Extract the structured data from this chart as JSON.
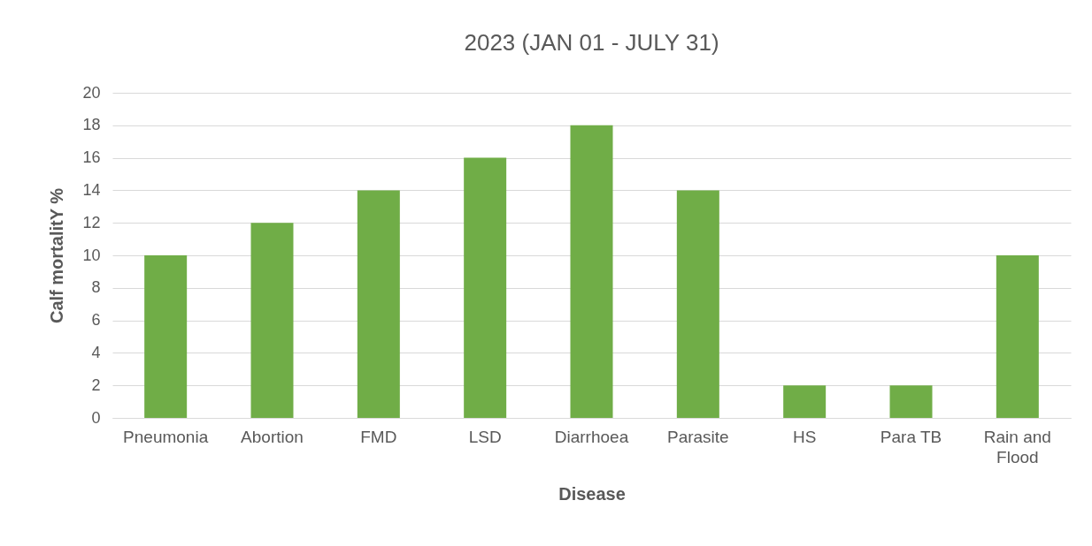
{
  "chart_data": {
    "type": "bar",
    "title": "2023 (JAN 01 - JULY 31)",
    "xlabel": "Disease",
    "ylabel": "Calf mortalitY %",
    "categories": [
      "Pneumonia",
      "Abortion",
      "FMD",
      "LSD",
      "Diarrhoea",
      "Parasite",
      "HS",
      "Para TB",
      "Rain and Flood"
    ],
    "values": [
      10,
      12,
      14,
      16,
      18,
      14,
      2,
      2,
      10
    ],
    "color": "#70ad47",
    "ylim": [
      0,
      20
    ],
    "yticks": [
      0,
      2,
      4,
      6,
      8,
      10,
      12,
      14,
      16,
      18,
      20
    ],
    "grid": "y"
  }
}
